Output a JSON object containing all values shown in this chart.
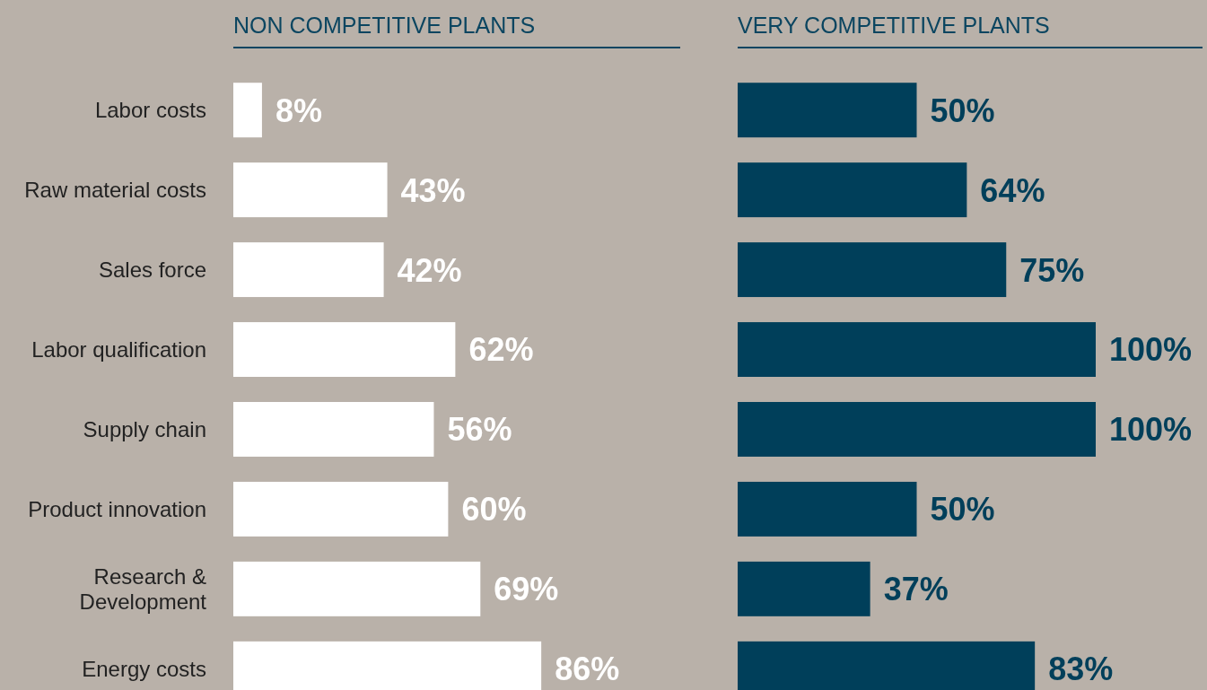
{
  "chart_data": [
    {
      "type": "bar",
      "orientation": "horizontal",
      "title": "NON COMPETITIVE PLANTS",
      "categories": [
        "Labor costs",
        "Raw material costs",
        "Sales force",
        "Labor qualification",
        "Supply chain",
        "Product innovation",
        "Research & Development",
        "Energy costs"
      ],
      "series": [
        {
          "color": "#ffffff",
          "values": [
            8,
            43,
            42,
            62,
            56,
            60,
            69,
            86
          ],
          "value_labels": [
            "8%",
            "43%",
            "42%",
            "62%",
            "56%",
            "60%",
            "69%",
            "86%"
          ]
        }
      ],
      "tick_labels": "y"
    },
    {
      "type": "bar",
      "orientation": "horizontal",
      "title": "VERY COMPETITIVE PLANTS",
      "categories": [
        null,
        null,
        null,
        null,
        null,
        null,
        null,
        null
      ],
      "series": [
        {
          "color": "#003f5a",
          "values": [
            50,
            64,
            75,
            100,
            100,
            50,
            37,
            83
          ],
          "value_labels": [
            "50%",
            "64%",
            "75%",
            "100%",
            "100%",
            "50%",
            "37%",
            "83%"
          ]
        }
      ],
      "tick_labels": false
    }
  ]
}
